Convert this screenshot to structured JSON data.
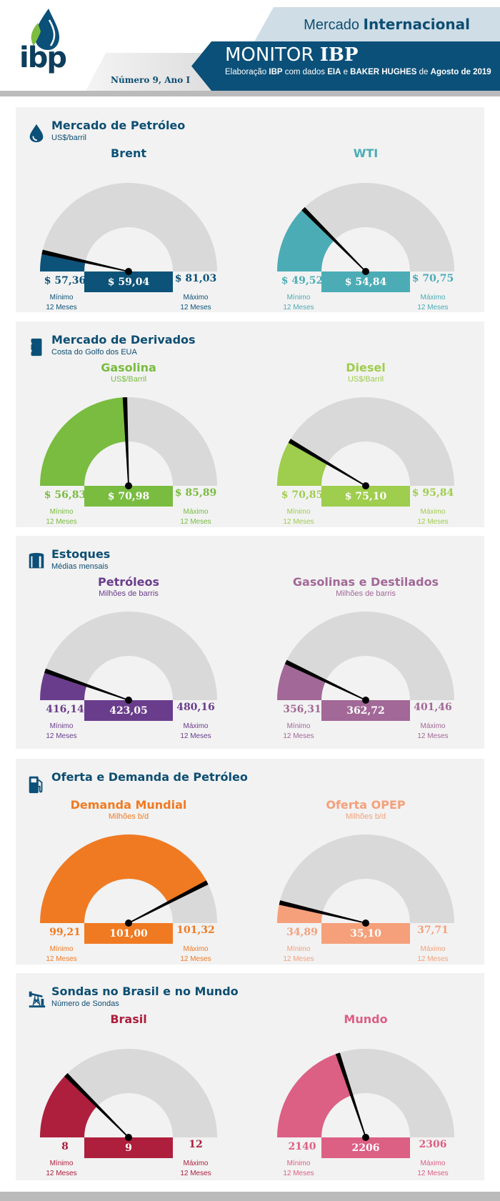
{
  "header": {
    "logo_text": "ibp",
    "market_label_light": "Mercado",
    "market_label_bold": "Internacional",
    "issue": "Número 9, Ano I",
    "monitor_light": "MONITOR",
    "monitor_bold": "IBP",
    "subtitle_parts": [
      "Elaboração ",
      "IBP",
      " com dados ",
      "EIA",
      " e ",
      "BAKER HUGHES",
      " de ",
      "Agosto de 2019"
    ]
  },
  "colors": {
    "brand_dark": "#0b5078",
    "brand_light": "#cfdde6",
    "panel_bg": "#f2f2f2",
    "gauge_track": "#d9d9d9"
  },
  "captions": {
    "min": "Mínimo",
    "max": "Máximo",
    "period": "12 Meses"
  },
  "sections": [
    {
      "title": "Mercado de Petróleo",
      "subtitle": "US$/barril",
      "icon": "oil-drop-icon",
      "gauges": [
        {
          "title": "Brent",
          "unit": "",
          "color": "#0d5278",
          "min_label": "$ 57,36",
          "value_label": "$ 59,04",
          "max_label": "$ 81,03"
        },
        {
          "title": "WTI",
          "unit": "",
          "color": "#4bacb6",
          "min_label": "$ 49,52",
          "value_label": "$ 54,84",
          "max_label": "$ 70,75"
        }
      ]
    },
    {
      "title": "Mercado de Derivados",
      "subtitle": "Costa do Golfo dos EUA",
      "icon": "barrel-icon",
      "gauges": [
        {
          "title": "Gasolina",
          "unit": "US$/Barril",
          "color": "#79bc40",
          "min_label": "$ 56,83",
          "value_label": "$ 70,98",
          "max_label": "$ 85,89"
        },
        {
          "title": "Diesel",
          "unit": "US$/Barril",
          "color": "#9fcd4d",
          "min_label": "$ 70,85",
          "value_label": "$ 75,10",
          "max_label": "$ 95,84"
        }
      ]
    },
    {
      "title": "Estoques",
      "subtitle": "Médias mensais",
      "icon": "storage-tank-icon",
      "gauges": [
        {
          "title": "Petróleos",
          "unit": "Milhões de barris",
          "color": "#6a3d8c",
          "min_label": "416,14",
          "value_label": "423,05",
          "max_label": "480,16"
        },
        {
          "title": "Gasolinas e Destilados",
          "unit": "Milhões de barris",
          "color": "#a26897",
          "min_label": "356,31",
          "value_label": "362,72",
          "max_label": "401,46"
        }
      ]
    },
    {
      "title": "Oferta e Demanda de Petróleo",
      "subtitle": "",
      "icon": "fuel-pump-icon",
      "gauges": [
        {
          "title": "Demanda Mundial",
          "unit": "Milhões b/d",
          "color": "#f07a22",
          "min_label": "99,21",
          "value_label": "101,00",
          "max_label": "101,32"
        },
        {
          "title": "Oferta OPEP",
          "unit": "Milhões b/d",
          "color": "#f5a07a",
          "min_label": "34,89",
          "value_label": "35,10",
          "max_label": "37,71"
        }
      ]
    },
    {
      "title": "Sondas no Brasil e no Mundo",
      "subtitle": "Número de Sondas",
      "icon": "oil-pump-jack-icon",
      "gauges": [
        {
          "title": "Brasil",
          "unit": "",
          "color": "#ad1f3c",
          "min_label": "8",
          "value_label": "9",
          "max_label": "12"
        },
        {
          "title": "Mundo",
          "unit": "",
          "color": "#dc5f84",
          "min_label": "2140",
          "value_label": "2206",
          "max_label": "2306"
        }
      ]
    }
  ],
  "chart_data": [
    {
      "type": "gauge",
      "section": "Mercado de Petróleo",
      "title": "Brent",
      "unit": "US$/barril",
      "min": 57.36,
      "value": 59.04,
      "max": 81.03,
      "min_caption": "Mínimo 12 Meses",
      "max_caption": "Máximo 12 Meses"
    },
    {
      "type": "gauge",
      "section": "Mercado de Petróleo",
      "title": "WTI",
      "unit": "US$/barril",
      "min": 49.52,
      "value": 54.84,
      "max": 70.75,
      "min_caption": "Mínimo 12 Meses",
      "max_caption": "Máximo 12 Meses"
    },
    {
      "type": "gauge",
      "section": "Mercado de Derivados",
      "title": "Gasolina",
      "unit": "US$/Barril",
      "min": 56.83,
      "value": 70.98,
      "max": 85.89,
      "min_caption": "Mínimo 12 Meses",
      "max_caption": "Máximo 12 Meses"
    },
    {
      "type": "gauge",
      "section": "Mercado de Derivados",
      "title": "Diesel",
      "unit": "US$/Barril",
      "min": 70.85,
      "value": 75.1,
      "max": 95.84,
      "min_caption": "Mínimo 12 Meses",
      "max_caption": "Máximo 12 Meses"
    },
    {
      "type": "gauge",
      "section": "Estoques",
      "title": "Petróleos",
      "unit": "Milhões de barris",
      "min": 416.14,
      "value": 423.05,
      "max": 480.16,
      "min_caption": "Mínimo 12 Meses",
      "max_caption": "Máximo 12 Meses"
    },
    {
      "type": "gauge",
      "section": "Estoques",
      "title": "Gasolinas e Destilados",
      "unit": "Milhões de barris",
      "min": 356.31,
      "value": 362.72,
      "max": 401.46,
      "min_caption": "Mínimo 12 Meses",
      "max_caption": "Máximo 12 Meses"
    },
    {
      "type": "gauge",
      "section": "Oferta e Demanda de Petróleo",
      "title": "Demanda Mundial",
      "unit": "Milhões b/d",
      "min": 99.21,
      "value": 101.0,
      "max": 101.32,
      "min_caption": "Mínimo 12 Meses",
      "max_caption": "Máximo 12 Meses"
    },
    {
      "type": "gauge",
      "section": "Oferta e Demanda de Petróleo",
      "title": "Oferta OPEP",
      "unit": "Milhões b/d",
      "min": 34.89,
      "value": 35.1,
      "max": 37.71,
      "min_caption": "Mínimo 12 Meses",
      "max_caption": "Máximo 12 Meses"
    },
    {
      "type": "gauge",
      "section": "Sondas no Brasil e no Mundo",
      "title": "Brasil",
      "unit": "Número de Sondas",
      "min": 8,
      "value": 9,
      "max": 12,
      "min_caption": "Mínimo 12 Meses",
      "max_caption": "Máximo 12 Meses"
    },
    {
      "type": "gauge",
      "section": "Sondas no Brasil e no Mundo",
      "title": "Mundo",
      "unit": "Número de Sondas",
      "min": 2140,
      "value": 2206,
      "max": 2306,
      "min_caption": "Mínimo 12 Meses",
      "max_caption": "Máximo 12 Meses"
    }
  ]
}
